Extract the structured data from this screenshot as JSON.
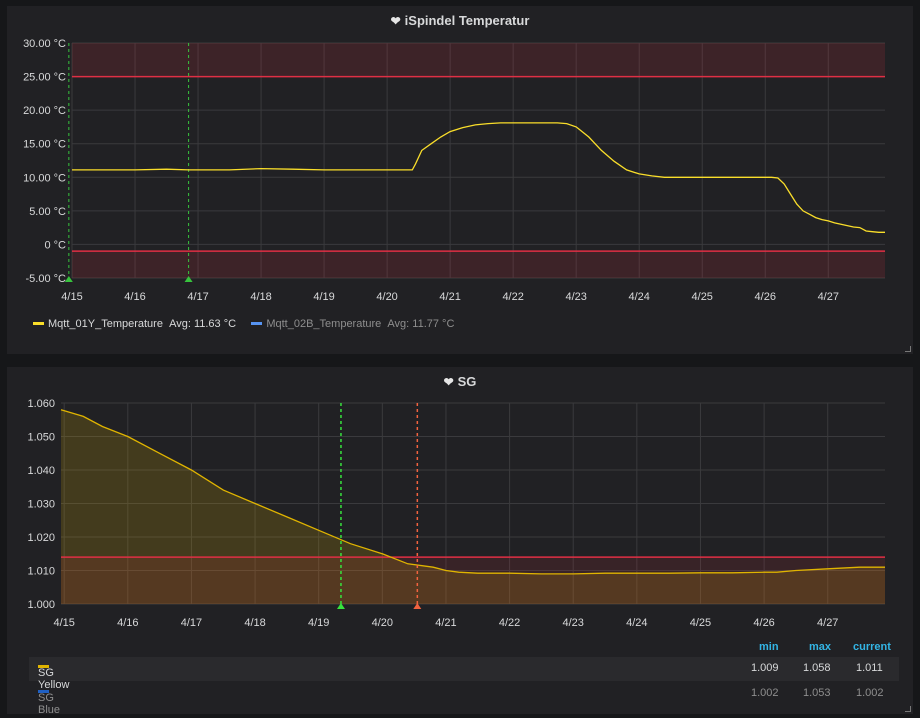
{
  "chart_data": [
    {
      "type": "line",
      "title": "iSpindel Temperatur",
      "x_dates": [
        "4/15",
        "4/16",
        "4/17",
        "4/18",
        "4/19",
        "4/20",
        "4/21",
        "4/22",
        "4/23",
        "4/24",
        "4/25",
        "4/26",
        "4/27"
      ],
      "yticks": [
        "30.00 °C",
        "25.00 °C",
        "20.00 °C",
        "15.00 °C",
        "10.00 °C",
        "5.00 °C",
        "0 °C",
        "-5.00 °C"
      ],
      "ylim": [
        -5,
        30
      ],
      "xlim": [
        0,
        12.9
      ],
      "thresholds": [
        25,
        -1
      ],
      "annotations": [
        -0.05,
        1.85
      ],
      "series": [
        {
          "name": "Mqtt_01Y_Temperature",
          "color": "#fade2a",
          "x": [
            0,
            0.5,
            1,
            1.5,
            1.85,
            2,
            2.5,
            3,
            3.5,
            4,
            4.5,
            5,
            5.4,
            5.45,
            5.55,
            5.7,
            5.85,
            6.0,
            6.2,
            6.4,
            6.6,
            6.8,
            7.0,
            7.2,
            7.5,
            7.7,
            7.85,
            8.0,
            8.2,
            8.4,
            8.6,
            8.8,
            9.0,
            9.2,
            9.4,
            9.6,
            10,
            10.5,
            10.8,
            11.0,
            11.1,
            11.2,
            11.3,
            11.4,
            11.5,
            11.6,
            11.7,
            11.8,
            11.9,
            12.0,
            12.1,
            12.2,
            12.3,
            12.4,
            12.5,
            12.6,
            12.7,
            12.8,
            12.9
          ],
          "y": [
            11.1,
            11.1,
            11.1,
            11.2,
            11.1,
            11.1,
            11.1,
            11.3,
            11.2,
            11.1,
            11.1,
            11.1,
            11.1,
            12.0,
            14.0,
            15.0,
            16.0,
            16.8,
            17.4,
            17.8,
            18.0,
            18.1,
            18.1,
            18.1,
            18.1,
            18.1,
            18.0,
            17.5,
            16.0,
            14.0,
            12.4,
            11.1,
            10.5,
            10.2,
            10.0,
            10.0,
            10.0,
            10.0,
            10.0,
            10.0,
            10.0,
            9.9,
            9.0,
            7.5,
            6.0,
            5.0,
            4.5,
            4.0,
            3.7,
            3.5,
            3.2,
            3.0,
            2.8,
            2.6,
            2.5,
            2.0,
            1.9,
            1.8,
            1.8
          ],
          "legend_avg": "Avg: 11.63 °C"
        },
        {
          "name": "Mqtt_02B_Temperature",
          "color": "#5794f2",
          "legend_avg": "Avg: 11.77 °C"
        }
      ]
    },
    {
      "type": "area",
      "title": "SG",
      "x_dates": [
        "4/15",
        "4/16",
        "4/17",
        "4/18",
        "4/19",
        "4/20",
        "4/21",
        "4/22",
        "4/23",
        "4/24",
        "4/25",
        "4/26",
        "4/27"
      ],
      "yticks": [
        "1.060",
        "1.050",
        "1.040",
        "1.030",
        "1.020",
        "1.010",
        "1.000"
      ],
      "ylim": [
        1.0,
        1.06
      ],
      "xlim": [
        -0.05,
        12.9
      ],
      "thresholds": [
        1.014
      ],
      "annotations": [
        4.35,
        5.55
      ],
      "series": [
        {
          "name": "SG Yellow",
          "color": "#e0b400",
          "x": [
            -0.05,
            0.3,
            0.6,
            1,
            1.5,
            2,
            2.5,
            3,
            3.5,
            4,
            4.5,
            5,
            5.4,
            5.8,
            6.0,
            6.2,
            6.5,
            7,
            7.5,
            8,
            8.5,
            9,
            9.5,
            10,
            10.5,
            11,
            11.2,
            11.5,
            12,
            12.5,
            12.9
          ],
          "y": [
            1.058,
            1.056,
            1.053,
            1.05,
            1.045,
            1.04,
            1.034,
            1.03,
            1.026,
            1.022,
            1.018,
            1.015,
            1.012,
            1.011,
            1.01,
            1.0095,
            1.0092,
            1.0092,
            1.009,
            1.009,
            1.0092,
            1.0092,
            1.0092,
            1.0093,
            1.0093,
            1.0095,
            1.0095,
            1.01,
            1.0105,
            1.011,
            1.011
          ],
          "min": "1.009",
          "max": "1.058",
          "current": "1.011"
        },
        {
          "name": "SG Blue",
          "color": "#1f60c4",
          "min": "1.002",
          "max": "1.053",
          "current": "1.002"
        }
      ],
      "legend_headers": {
        "min": "min",
        "max": "max",
        "current": "current"
      }
    }
  ]
}
